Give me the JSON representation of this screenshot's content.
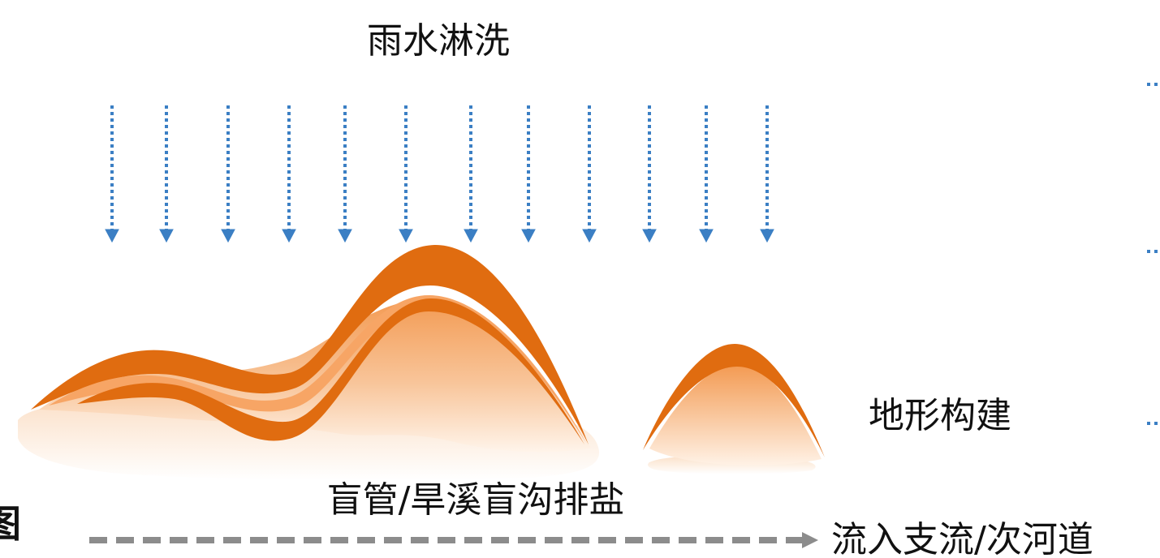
{
  "labels": {
    "rain": "雨水淋洗",
    "terrain": "地形构建",
    "drain": "盲管/旱溪盲沟排盐",
    "outflow": "流入支流/次河道",
    "cropped_char": "图"
  },
  "colors": {
    "rain_arrow": "#3B7FC4",
    "terrain_dark": "#E06C10",
    "terrain_mid": "#F4A261",
    "terrain_light": "#FBE3CE",
    "outflow_arrow": "#8C8C8C",
    "text": "#111111"
  }
}
